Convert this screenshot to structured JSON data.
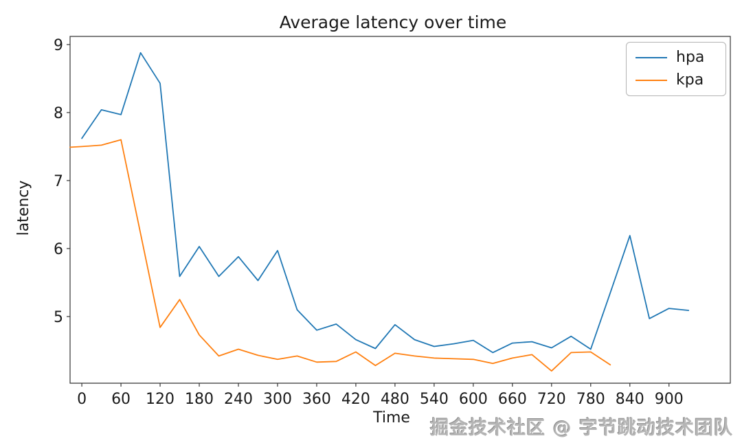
{
  "watermark": {
    "text": "掘金技术社区 @ 字节跳动技术团队"
  },
  "chart_data": {
    "type": "line",
    "title": "Average latency over time",
    "xlabel": "Time",
    "ylabel": "latency",
    "xlim": [
      -18,
      994
    ],
    "ylim": [
      4.02,
      9.12
    ],
    "xticks": [
      0,
      60,
      120,
      180,
      240,
      300,
      360,
      420,
      480,
      540,
      600,
      660,
      720,
      780,
      840,
      900
    ],
    "yticks": [
      5,
      6,
      7,
      8,
      9
    ],
    "grid": false,
    "legend_position": "upper right",
    "axis_color": "#333333",
    "series": [
      {
        "name": "hpa",
        "color": "#1f77b4",
        "x": [
          0,
          30,
          60,
          90,
          120,
          150,
          180,
          210,
          240,
          270,
          300,
          330,
          360,
          390,
          420,
          450,
          480,
          510,
          540,
          570,
          600,
          630,
          660,
          690,
          720,
          750,
          780,
          810,
          840,
          870,
          900,
          930
        ],
        "y": [
          7.62,
          8.04,
          7.97,
          8.88,
          8.43,
          5.59,
          6.03,
          5.59,
          5.88,
          5.53,
          5.97,
          5.1,
          4.8,
          4.89,
          4.66,
          4.53,
          4.88,
          4.66,
          4.56,
          4.6,
          4.65,
          4.47,
          4.61,
          4.63,
          4.54,
          4.71,
          4.52,
          5.35,
          6.19,
          4.97,
          5.12,
          5.09
        ]
      },
      {
        "name": "kpa",
        "color": "#ff7f0e",
        "x": [
          -18,
          0,
          30,
          60,
          90,
          120,
          150,
          180,
          210,
          240,
          270,
          300,
          330,
          360,
          390,
          420,
          450,
          480,
          510,
          540,
          570,
          600,
          630,
          660,
          690,
          720,
          750,
          780,
          810
        ],
        "y": [
          7.49,
          7.5,
          7.52,
          7.6,
          6.22,
          4.84,
          5.25,
          4.73,
          4.42,
          4.52,
          4.43,
          4.37,
          4.42,
          4.33,
          4.34,
          4.48,
          4.28,
          4.46,
          4.42,
          4.39,
          4.38,
          4.37,
          4.31,
          4.39,
          4.44,
          4.2,
          4.47,
          4.48,
          4.29
        ]
      }
    ]
  }
}
